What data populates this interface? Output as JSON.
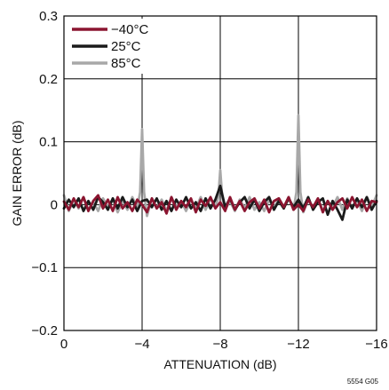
{
  "chart_data": {
    "type": "line",
    "title": "",
    "xlabel": "ATTENUATION (dB)",
    "ylabel": "GAIN ERROR (dB)",
    "xlim": [
      0,
      -16
    ],
    "ylim": [
      -0.2,
      0.3
    ],
    "x_ticks": [
      0,
      -4,
      -8,
      -12,
      -16
    ],
    "x_tick_labels": [
      "0",
      "−4",
      "−8",
      "−12",
      "−16"
    ],
    "y_ticks": [
      -0.2,
      -0.1,
      0,
      0.1,
      0.2,
      0.3
    ],
    "y_tick_labels": [
      "−0.2",
      "−0.1",
      "0",
      "0.1",
      "0.2",
      "0.3"
    ],
    "grid": true,
    "legend_position": "top-left",
    "figure_code": "5554 G05",
    "series": [
      {
        "name": "−40°C",
        "color": "#8b1530",
        "x": [
          0,
          -0.25,
          -0.5,
          -0.75,
          -1,
          -1.25,
          -1.5,
          -1.75,
          -2,
          -2.25,
          -2.5,
          -2.75,
          -3,
          -3.25,
          -3.5,
          -3.75,
          -4,
          -4.25,
          -4.5,
          -4.75,
          -5,
          -5.25,
          -5.5,
          -5.75,
          -6,
          -6.25,
          -6.5,
          -6.75,
          -7,
          -7.25,
          -7.5,
          -7.75,
          -8,
          -8.25,
          -8.5,
          -8.75,
          -9,
          -9.25,
          -9.5,
          -9.75,
          -10,
          -10.25,
          -10.5,
          -10.75,
          -11,
          -11.25,
          -11.5,
          -11.75,
          -12,
          -12.25,
          -12.5,
          -12.75,
          -13,
          -13.25,
          -13.5,
          -13.75,
          -14,
          -14.25,
          -14.5,
          -14.75,
          -15,
          -15.25,
          -15.5,
          -15.75,
          -16
        ],
        "y": [
          0.005,
          -0.008,
          0.01,
          -0.004,
          0.012,
          -0.01,
          0.006,
          0.015,
          -0.006,
          0.008,
          -0.01,
          0.012,
          -0.006,
          0.004,
          -0.01,
          0.008,
          0.0,
          -0.012,
          0.01,
          -0.006,
          0.004,
          -0.014,
          0.012,
          -0.008,
          0.006,
          -0.004,
          0.01,
          -0.012,
          0.008,
          -0.002,
          0.012,
          -0.006,
          0.004,
          -0.01,
          0.012,
          -0.008,
          0.006,
          -0.01,
          0.004,
          0.01,
          -0.006,
          0.008,
          -0.012,
          0.006,
          0.01,
          -0.004,
          0.012,
          -0.008,
          0.0,
          -0.01,
          0.008,
          -0.004,
          0.01,
          -0.012,
          0.006,
          -0.008,
          0.004,
          0.01,
          -0.006,
          0.012,
          -0.004,
          0.008,
          -0.01,
          0.006,
          0.004
        ]
      },
      {
        "name": "25°C",
        "color": "#1a1a1a",
        "x": [
          0,
          -0.25,
          -0.5,
          -0.75,
          -1,
          -1.25,
          -1.5,
          -1.75,
          -2,
          -2.25,
          -2.5,
          -2.75,
          -3,
          -3.25,
          -3.5,
          -3.75,
          -4,
          -4.25,
          -4.5,
          -4.75,
          -5,
          -5.25,
          -5.5,
          -5.75,
          -6,
          -6.25,
          -6.5,
          -6.75,
          -7,
          -7.25,
          -7.5,
          -7.75,
          -8,
          -8.25,
          -8.5,
          -8.75,
          -9,
          -9.25,
          -9.5,
          -9.75,
          -10,
          -10.25,
          -10.5,
          -10.75,
          -11,
          -11.25,
          -11.5,
          -11.75,
          -12,
          -12.25,
          -12.5,
          -12.75,
          -13,
          -13.25,
          -13.5,
          -13.75,
          -14,
          -14.25,
          -14.5,
          -14.75,
          -15,
          -15.25,
          -15.5,
          -15.75,
          -16
        ],
        "y": [
          -0.006,
          0.008,
          -0.004,
          0.01,
          -0.01,
          0.006,
          -0.008,
          0.012,
          0.004,
          -0.008,
          0.01,
          -0.006,
          0.012,
          -0.004,
          0.008,
          -0.01,
          0.006,
          0.008,
          -0.004,
          0.01,
          -0.008,
          0.006,
          -0.01,
          0.008,
          -0.004,
          0.012,
          -0.006,
          0.004,
          -0.01,
          0.01,
          -0.006,
          0.008,
          0.03,
          -0.004,
          0.01,
          -0.008,
          0.004,
          0.012,
          -0.006,
          0.008,
          -0.01,
          0.004,
          0.012,
          -0.008,
          0.006,
          -0.006,
          0.01,
          -0.004,
          0.008,
          -0.006,
          0.012,
          -0.008,
          0.004,
          0.01,
          -0.016,
          0.006,
          -0.008,
          -0.024,
          0.008,
          -0.006,
          0.01,
          -0.004,
          0.012,
          -0.008,
          0.006
        ]
      },
      {
        "name": "85°C",
        "color": "#a8a8a8",
        "x": [
          0,
          -0.25,
          -0.5,
          -0.75,
          -1,
          -1.25,
          -1.5,
          -1.75,
          -2,
          -2.25,
          -2.5,
          -2.75,
          -3,
          -3.25,
          -3.5,
          -3.75,
          -3.9,
          -4,
          -4.1,
          -4.25,
          -4.5,
          -4.75,
          -5,
          -5.25,
          -5.5,
          -5.75,
          -6,
          -6.25,
          -6.5,
          -6.75,
          -7,
          -7.25,
          -7.5,
          -7.75,
          -7.9,
          -8,
          -8.1,
          -8.25,
          -8.5,
          -8.75,
          -9,
          -9.25,
          -9.5,
          -9.75,
          -10,
          -10.25,
          -10.5,
          -10.75,
          -11,
          -11.25,
          -11.5,
          -11.75,
          -11.9,
          -12,
          -12.1,
          -12.25,
          -12.5,
          -12.75,
          -13,
          -13.25,
          -13.5,
          -13.75,
          -14,
          -14.25,
          -14.5,
          -14.75,
          -15,
          -15.25,
          -15.5,
          -15.75,
          -16
        ],
        "y": [
          0.015,
          -0.01,
          0.008,
          -0.006,
          0.012,
          -0.008,
          0.004,
          -0.01,
          0.01,
          -0.004,
          0.008,
          -0.012,
          0.006,
          -0.008,
          0.012,
          -0.006,
          0.02,
          0.12,
          0.02,
          -0.018,
          0.01,
          -0.006,
          0.008,
          -0.01,
          0.012,
          -0.004,
          0.006,
          -0.01,
          0.008,
          -0.006,
          0.012,
          -0.008,
          0.01,
          -0.004,
          0.012,
          0.055,
          0.012,
          -0.008,
          0.006,
          -0.01,
          0.008,
          -0.006,
          0.012,
          -0.008,
          0.004,
          -0.01,
          0.008,
          -0.006,
          0.01,
          -0.004,
          0.012,
          -0.008,
          0.02,
          0.142,
          0.02,
          -0.012,
          0.008,
          -0.006,
          0.01,
          -0.01,
          0.006,
          -0.004,
          0.012,
          -0.008,
          0.01,
          -0.006,
          0.008,
          -0.01,
          0.012,
          -0.004,
          0.015
        ]
      }
    ]
  }
}
